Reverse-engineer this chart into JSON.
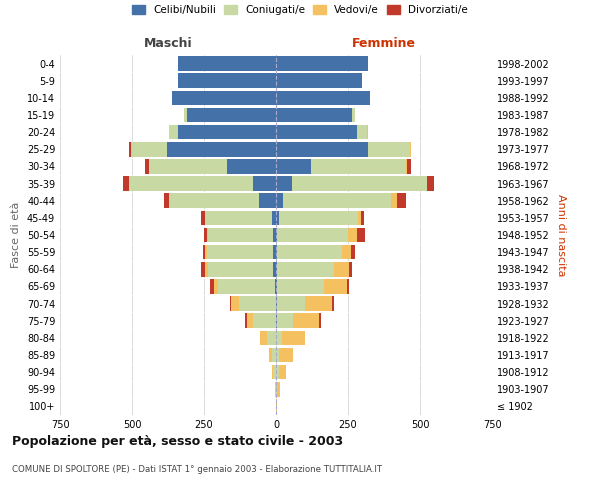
{
  "age_groups": [
    "100+",
    "95-99",
    "90-94",
    "85-89",
    "80-84",
    "75-79",
    "70-74",
    "65-69",
    "60-64",
    "55-59",
    "50-54",
    "45-49",
    "40-44",
    "35-39",
    "30-34",
    "25-29",
    "20-24",
    "15-19",
    "10-14",
    "5-9",
    "0-4"
  ],
  "birth_years": [
    "≤ 1902",
    "1903-1907",
    "1908-1912",
    "1913-1917",
    "1918-1922",
    "1923-1927",
    "1928-1932",
    "1933-1937",
    "1938-1942",
    "1943-1947",
    "1948-1952",
    "1953-1957",
    "1958-1962",
    "1963-1967",
    "1968-1972",
    "1973-1977",
    "1978-1982",
    "1983-1987",
    "1988-1992",
    "1993-1997",
    "1998-2002"
  ],
  "males": {
    "celibe": [
      0,
      0,
      0,
      0,
      0,
      0,
      0,
      5,
      10,
      10,
      10,
      15,
      60,
      80,
      170,
      380,
      340,
      310,
      360,
      340,
      340
    ],
    "coniugato": [
      0,
      2,
      10,
      15,
      30,
      80,
      130,
      195,
      225,
      230,
      225,
      230,
      310,
      430,
      270,
      120,
      30,
      10,
      0,
      0,
      0
    ],
    "vedovo": [
      0,
      2,
      5,
      10,
      25,
      20,
      25,
      15,
      10,
      5,
      5,
      0,
      0,
      0,
      0,
      5,
      0,
      0,
      0,
      0,
      0
    ],
    "divorziato": [
      0,
      0,
      0,
      0,
      0,
      8,
      5,
      15,
      15,
      10,
      10,
      15,
      20,
      20,
      15,
      5,
      0,
      0,
      0,
      0,
      0
    ]
  },
  "females": {
    "nubile": [
      0,
      0,
      0,
      0,
      0,
      5,
      5,
      5,
      5,
      5,
      5,
      10,
      25,
      55,
      120,
      320,
      280,
      265,
      325,
      300,
      320
    ],
    "coniugata": [
      0,
      5,
      10,
      10,
      20,
      55,
      95,
      160,
      195,
      225,
      245,
      275,
      375,
      470,
      330,
      145,
      35,
      10,
      0,
      0,
      0
    ],
    "vedova": [
      2,
      10,
      25,
      50,
      80,
      90,
      95,
      80,
      55,
      30,
      30,
      10,
      20,
      0,
      5,
      5,
      5,
      0,
      0,
      0,
      0
    ],
    "divorziata": [
      0,
      0,
      0,
      0,
      0,
      5,
      5,
      10,
      10,
      15,
      30,
      10,
      30,
      25,
      15,
      0,
      0,
      0,
      0,
      0,
      0
    ]
  },
  "colors": {
    "celibe": "#4472a8",
    "coniugato": "#c8d9a4",
    "vedovo": "#f5c060",
    "divorziato": "#c0392b"
  },
  "legend_labels": [
    "Celibi/Nubili",
    "Coniugati/e",
    "Vedovi/e",
    "Divorziati/e"
  ],
  "xlabel_left": "Maschi",
  "xlabel_right": "Femmine",
  "ylabel_left": "Fasce di età",
  "ylabel_right": "Anni di nascita",
  "title": "Popolazione per età, sesso e stato civile - 2003",
  "subtitle": "COMUNE DI SPOLTORE (PE) - Dati ISTAT 1° gennaio 2003 - Elaborazione TUTTITALIA.IT",
  "xlim": 750,
  "bg_color": "#ffffff",
  "grid_color": "#cccccc",
  "bar_height": 0.85
}
